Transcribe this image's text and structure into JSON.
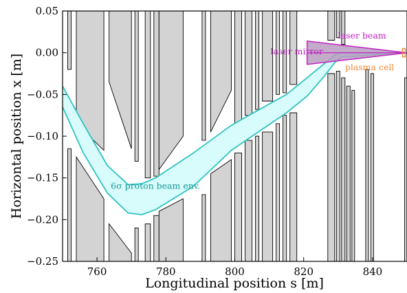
{
  "chart_data": {
    "type": "area",
    "xlabel": "Longitudinal position s [m]",
    "ylabel": "Horizontal position x [m]",
    "xlim": [
      750,
      850
    ],
    "ylim": [
      -0.25,
      0.05
    ],
    "xticks": [
      "760",
      "780",
      "800",
      "820",
      "840"
    ],
    "xtick_values": [
      760,
      780,
      800,
      820,
      840
    ],
    "yticks": [
      "0.05",
      "0.00",
      "−0.05",
      "−0.10",
      "−0.15",
      "−0.20",
      "−0.25"
    ],
    "ytick_values": [
      0.05,
      0.0,
      -0.05,
      -0.1,
      -0.15,
      -0.2,
      -0.25
    ],
    "grid": false,
    "colors": {
      "envelope_line": "#2ec4c0",
      "envelope_fill": "#d8fbfb",
      "laser": "#c21fc2",
      "laser_fill": "#b99cc0",
      "plasma": "#f08c3c",
      "magnet_fill": "#d3d3d3",
      "magnet_edge": "#000000"
    },
    "series": [
      {
        "name": "6σ proton beam env.",
        "upper": {
          "x": [
            750,
            756,
            763,
            769,
            773,
            777,
            788,
            799,
            805,
            815,
            821,
            826,
            829,
            831,
            850
          ],
          "y": [
            -0.04,
            -0.085,
            -0.135,
            -0.158,
            -0.157,
            -0.15,
            -0.12,
            -0.087,
            -0.073,
            -0.05,
            -0.03,
            -0.013,
            -0.003,
            0.0,
            0.0
          ]
        },
        "lower": {
          "x": [
            750,
            756,
            763,
            769,
            773,
            777,
            788,
            799,
            805,
            815,
            821,
            826,
            829,
            831,
            850
          ],
          "y": [
            -0.065,
            -0.12,
            -0.168,
            -0.192,
            -0.194,
            -0.188,
            -0.16,
            -0.117,
            -0.1,
            -0.072,
            -0.052,
            -0.028,
            -0.012,
            -0.005,
            0.0
          ]
        }
      }
    ],
    "laser_beam": {
      "x": [
        821,
        821,
        850
      ],
      "y": [
        0.014,
        -0.014,
        0.0
      ],
      "centerline_x": [
        821,
        850
      ],
      "centerline_y": [
        0.0,
        0.0
      ]
    },
    "plasma_cell": {
      "x_start": 849,
      "x_end": 850,
      "y_low": -0.005,
      "y_high": 0.005
    },
    "magnets": [
      {
        "x1": 751.5,
        "x2": 752.5,
        "y_top_end": [
          0.05,
          -0.02
        ],
        "y_bottom_end": [
          -0.115,
          -0.25
        ]
      },
      {
        "x1": 754,
        "x2": 762,
        "y_top_end": [
          0.05,
          -0.117
        ],
        "y_bottom_end": [
          -0.125,
          -0.25
        ]
      },
      {
        "x1": 763,
        "x2": 770,
        "y_top_end": [
          0.05,
          -0.035
        ],
        "y_bottom_end": [
          -0.205,
          -0.25
        ]
      },
      {
        "x1": 763,
        "x2": 770,
        "y_top_end": [
          0.05,
          -0.035
        ],
        "y_bottom_end": [
          -0.205,
          -0.25
        ]
      },
      {
        "x1": 776,
        "x2": 778,
        "y_top_end": [
          0.05,
          -0.145
        ],
        "y_bottom_end": [
          -0.195,
          -0.25
        ]
      }
    ],
    "magnet_polys": [
      {
        "x": [
          751.5,
          752.5,
          752.5,
          751.5
        ],
        "y": [
          0.05,
          0.05,
          -0.02,
          -0.02
        ]
      },
      {
        "x": [
          751.5,
          752.5,
          752.5,
          751.5
        ],
        "y": [
          -0.115,
          -0.115,
          -0.25,
          -0.25
        ]
      },
      {
        "x": [
          754,
          762,
          762,
          754
        ],
        "y": [
          0.05,
          0.05,
          -0.117,
          -0.085
        ]
      },
      {
        "x": [
          754,
          762,
          762,
          754
        ],
        "y": [
          -0.125,
          -0.175,
          -0.25,
          -0.25
        ]
      },
      {
        "x": [
          763.5,
          770,
          770,
          763.5
        ],
        "y": [
          0.05,
          0.05,
          -0.115,
          -0.035
        ]
      },
      {
        "x": [
          763.5,
          770,
          770,
          763.5
        ],
        "y": [
          -0.205,
          -0.24,
          -0.25,
          -0.25
        ]
      },
      {
        "x": [
          771,
          772,
          772,
          771
        ],
        "y": [
          0.05,
          0.05,
          -0.13,
          -0.13
        ]
      },
      {
        "x": [
          771,
          772,
          772,
          771
        ],
        "y": [
          -0.21,
          -0.21,
          -0.25,
          -0.25
        ]
      },
      {
        "x": [
          774,
          775.5,
          775.5,
          774
        ],
        "y": [
          0.05,
          0.05,
          -0.15,
          -0.15
        ]
      },
      {
        "x": [
          774,
          775.5,
          775.5,
          774
        ],
        "y": [
          -0.205,
          -0.205,
          -0.25,
          -0.25
        ]
      },
      {
        "x": [
          776.5,
          778,
          778,
          776.5
        ],
        "y": [
          0.05,
          0.05,
          -0.148,
          -0.148
        ]
      },
      {
        "x": [
          776.5,
          778,
          778,
          776.5
        ],
        "y": [
          -0.195,
          -0.195,
          -0.25,
          -0.25
        ]
      },
      {
        "x": [
          778,
          785,
          785,
          778
        ],
        "y": [
          0.05,
          0.05,
          -0.1,
          -0.14
        ]
      },
      {
        "x": [
          778,
          785,
          785,
          778
        ],
        "y": [
          -0.19,
          -0.175,
          -0.25,
          -0.25
        ]
      },
      {
        "x": [
          790.5,
          791.5,
          791.5,
          790.5
        ],
        "y": [
          0.05,
          0.05,
          -0.105,
          -0.105
        ]
      },
      {
        "x": [
          790.5,
          791.5,
          791.5,
          790.5
        ],
        "y": [
          -0.17,
          -0.17,
          -0.25,
          -0.25
        ]
      },
      {
        "x": [
          793,
          799,
          799,
          793
        ],
        "y": [
          0.05,
          0.05,
          -0.045,
          -0.095
        ]
      },
      {
        "x": [
          793,
          799,
          799,
          793
        ],
        "y": [
          -0.145,
          -0.128,
          -0.25,
          -0.25
        ]
      },
      {
        "x": [
          800,
          802,
          802,
          800
        ],
        "y": [
          0.05,
          0.05,
          -0.085,
          -0.085
        ]
      },
      {
        "x": [
          800,
          802,
          802,
          800
        ],
        "y": [
          -0.12,
          -0.12,
          -0.25,
          -0.25
        ]
      },
      {
        "x": [
          803,
          805,
          805,
          803
        ],
        "y": [
          0.05,
          0.05,
          -0.075,
          -0.075
        ]
      },
      {
        "x": [
          803,
          805,
          805,
          803
        ],
        "y": [
          -0.105,
          -0.105,
          -0.25,
          -0.25
        ]
      },
      {
        "x": [
          806,
          807,
          807,
          806
        ],
        "y": [
          0.05,
          0.05,
          -0.068,
          -0.068
        ]
      },
      {
        "x": [
          806,
          807,
          807,
          806
        ],
        "y": [
          -0.1,
          -0.1,
          -0.25,
          -0.25
        ]
      },
      {
        "x": [
          808,
          811,
          811,
          808
        ],
        "y": [
          0.05,
          0.05,
          -0.058,
          -0.058
        ]
      },
      {
        "x": [
          808,
          811,
          811,
          808
        ],
        "y": [
          -0.095,
          -0.095,
          -0.25,
          -0.25
        ]
      },
      {
        "x": [
          812,
          813,
          813,
          812
        ],
        "y": [
          0.05,
          0.05,
          -0.05,
          -0.05
        ]
      },
      {
        "x": [
          812,
          813,
          813,
          812
        ],
        "y": [
          -0.085,
          -0.085,
          -0.25,
          -0.25
        ]
      },
      {
        "x": [
          814,
          815,
          815,
          814
        ],
        "y": [
          0.05,
          0.05,
          -0.048,
          -0.048
        ]
      },
      {
        "x": [
          814,
          815,
          815,
          814
        ],
        "y": [
          -0.075,
          -0.075,
          -0.25,
          -0.25
        ]
      },
      {
        "x": [
          816,
          818,
          818,
          816
        ],
        "y": [
          0.05,
          0.05,
          -0.038,
          -0.038
        ]
      },
      {
        "x": [
          816,
          818,
          818,
          816
        ],
        "y": [
          -0.072,
          -0.072,
          -0.25,
          -0.25
        ]
      },
      {
        "x": [
          827,
          829,
          829,
          827
        ],
        "y": [
          0.05,
          0.05,
          0.015,
          0.015
        ]
      },
      {
        "x": [
          827,
          829,
          829,
          827
        ],
        "y": [
          -0.025,
          -0.025,
          -0.25,
          -0.25
        ]
      },
      {
        "x": [
          829.5,
          830.5,
          830.5,
          829.5
        ],
        "y": [
          0.05,
          0.05,
          0.018,
          0.018
        ]
      },
      {
        "x": [
          829.5,
          830.5,
          830.5,
          829.5
        ],
        "y": [
          -0.022,
          -0.022,
          -0.25,
          -0.25
        ]
      },
      {
        "x": [
          831,
          832,
          832,
          831
        ],
        "y": [
          0.05,
          0.05,
          0.01,
          0.01
        ]
      },
      {
        "x": [
          831,
          832,
          832,
          831
        ],
        "y": [
          -0.03,
          -0.03,
          -0.25,
          -0.25
        ]
      },
      {
        "x": [
          832.5,
          833.5,
          833.5,
          832.5
        ],
        "y": [
          -0.04,
          -0.04,
          -0.25,
          -0.25
        ]
      },
      {
        "x": [
          834,
          834.8,
          834.8,
          834
        ],
        "y": [
          -0.045,
          -0.045,
          -0.25,
          -0.25
        ]
      },
      {
        "x": [
          838,
          838.8,
          838.8,
          838
        ],
        "y": [
          -0.02,
          -0.02,
          -0.25,
          -0.25
        ]
      },
      {
        "x": [
          839.5,
          840.3,
          840.3,
          839.5
        ],
        "y": [
          -0.025,
          -0.025,
          -0.25,
          -0.25
        ]
      },
      {
        "x": [
          849.3,
          850,
          850,
          849.3
        ],
        "y": [
          -0.03,
          -0.03,
          -0.25,
          -0.25
        ]
      }
    ],
    "annotations": {
      "beam_label": "6σ proton beam env.",
      "laser_beam_label": "laser beam",
      "laser_mirror_label": "laser mirror",
      "plasma_cell_label": "plasma cell"
    },
    "annotation_positions": {
      "beam_label": [
        764,
        -0.163
      ],
      "laser_beam_label": [
        830,
        0.017
      ],
      "laser_mirror_label": [
        818,
        -0.002
      ],
      "plasma_cell_label": [
        832,
        -0.021
      ]
    }
  }
}
